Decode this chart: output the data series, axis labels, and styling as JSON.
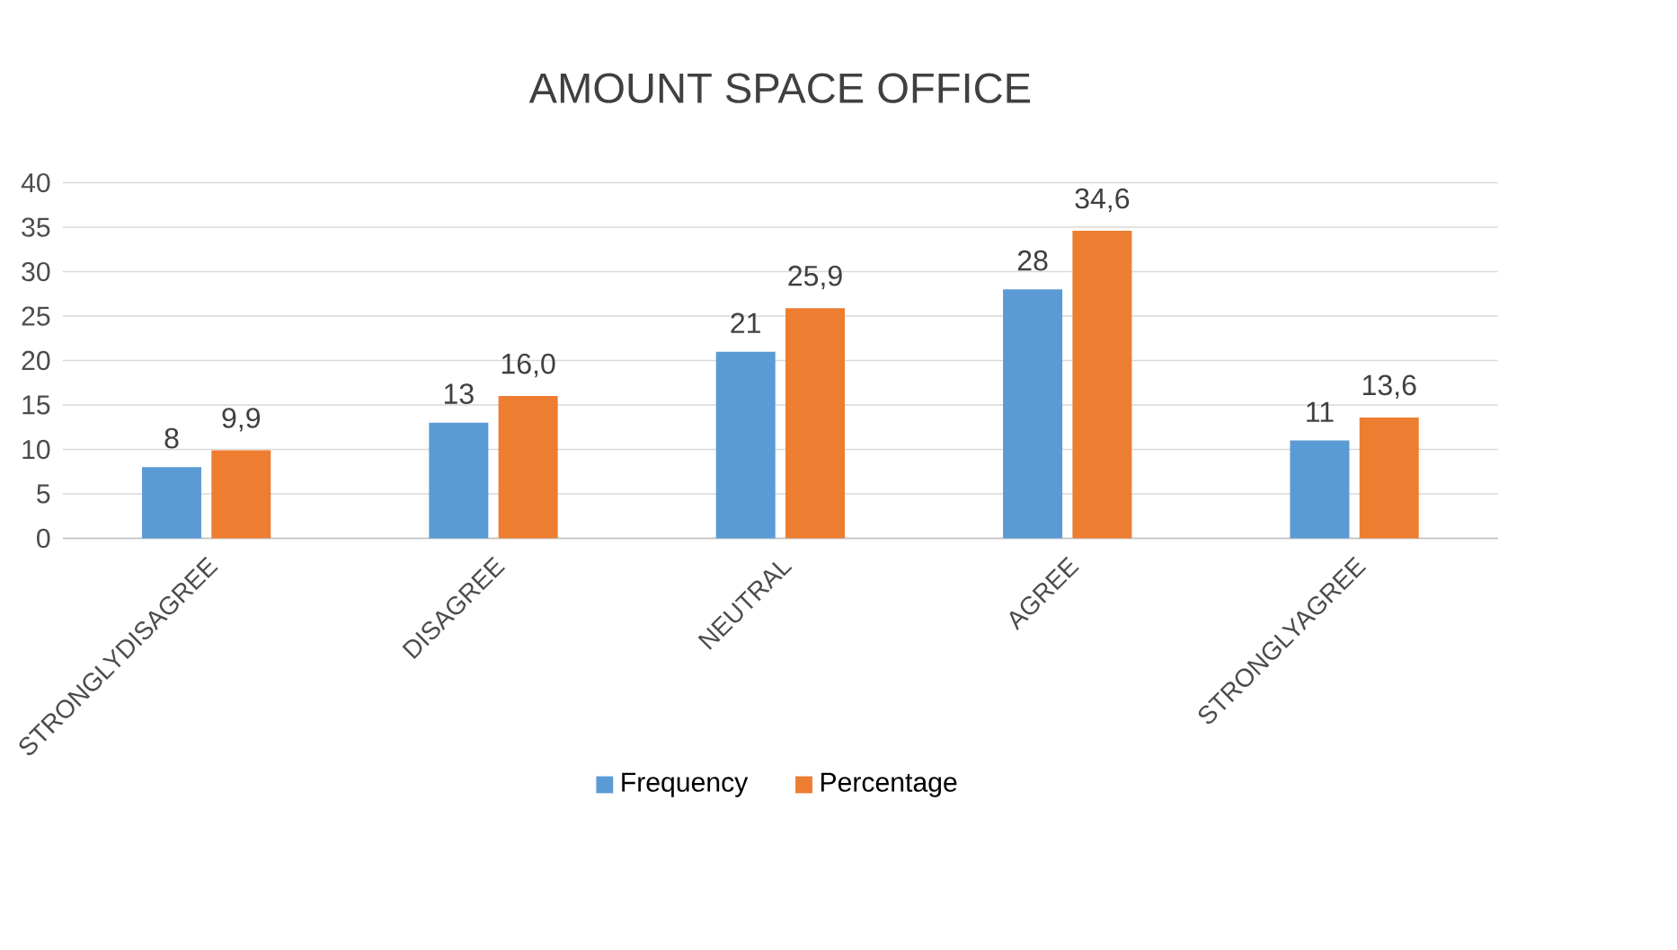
{
  "chart_data": {
    "type": "bar",
    "title": "AMOUNT SPACE OFFICE",
    "categories": [
      "STRONGLYDISAGREE",
      "DISAGREE",
      "NEUTRAL",
      "AGREE",
      "STRONGLYAGREE"
    ],
    "series": [
      {
        "name": "Frequency",
        "color": "#5b9bd5",
        "values": [
          8,
          13,
          21,
          28,
          11
        ],
        "value_labels": [
          "8",
          "13",
          "21",
          "28",
          "11"
        ]
      },
      {
        "name": "Percentage",
        "color": "#ed7d31",
        "values": [
          9.9,
          16.0,
          25.9,
          34.6,
          13.6
        ],
        "value_labels": [
          "9,9",
          "16,0",
          "25,9",
          "34,6",
          "13,6"
        ]
      }
    ],
    "ylim": [
      0,
      40
    ],
    "yticks": [
      0,
      5,
      10,
      15,
      20,
      25,
      30,
      35,
      40
    ],
    "grid": "y",
    "legend": "bottom"
  }
}
